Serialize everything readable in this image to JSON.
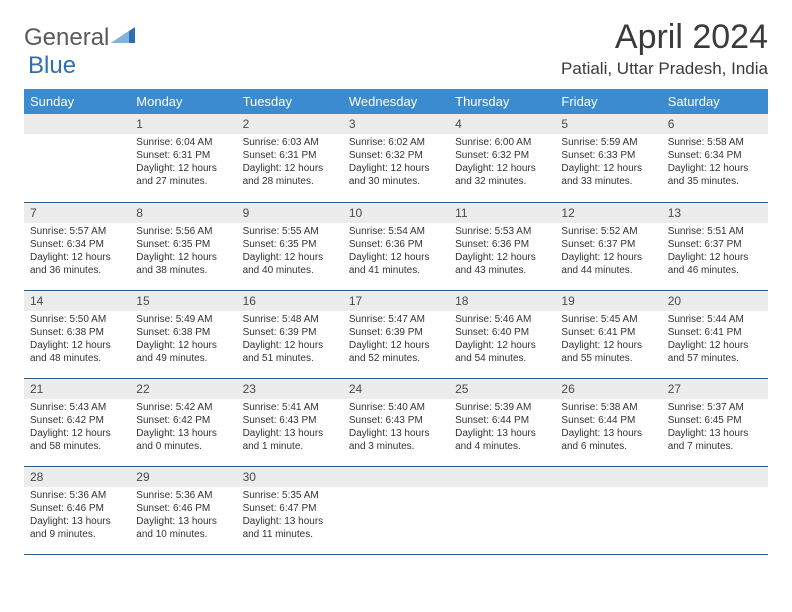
{
  "logo": {
    "text1": "General",
    "text2": "Blue"
  },
  "title": "April 2024",
  "location": "Patiali, Uttar Pradesh, India",
  "colors": {
    "header_bg": "#3b8bd0",
    "header_text": "#ffffff",
    "daynum_bg": "#ececec",
    "daynum_text": "#4a4a4a",
    "border": "#2e5f8f",
    "body_text": "#333333",
    "logo_text": "#5a5a5a",
    "logo_accent": "#2f6fb0"
  },
  "weekdays": [
    "Sunday",
    "Monday",
    "Tuesday",
    "Wednesday",
    "Thursday",
    "Friday",
    "Saturday"
  ],
  "weeks": [
    [
      null,
      {
        "n": "1",
        "sr": "Sunrise: 6:04 AM",
        "ss": "Sunset: 6:31 PM",
        "dl": "Daylight: 12 hours and 27 minutes."
      },
      {
        "n": "2",
        "sr": "Sunrise: 6:03 AM",
        "ss": "Sunset: 6:31 PM",
        "dl": "Daylight: 12 hours and 28 minutes."
      },
      {
        "n": "3",
        "sr": "Sunrise: 6:02 AM",
        "ss": "Sunset: 6:32 PM",
        "dl": "Daylight: 12 hours and 30 minutes."
      },
      {
        "n": "4",
        "sr": "Sunrise: 6:00 AM",
        "ss": "Sunset: 6:32 PM",
        "dl": "Daylight: 12 hours and 32 minutes."
      },
      {
        "n": "5",
        "sr": "Sunrise: 5:59 AM",
        "ss": "Sunset: 6:33 PM",
        "dl": "Daylight: 12 hours and 33 minutes."
      },
      {
        "n": "6",
        "sr": "Sunrise: 5:58 AM",
        "ss": "Sunset: 6:34 PM",
        "dl": "Daylight: 12 hours and 35 minutes."
      }
    ],
    [
      {
        "n": "7",
        "sr": "Sunrise: 5:57 AM",
        "ss": "Sunset: 6:34 PM",
        "dl": "Daylight: 12 hours and 36 minutes."
      },
      {
        "n": "8",
        "sr": "Sunrise: 5:56 AM",
        "ss": "Sunset: 6:35 PM",
        "dl": "Daylight: 12 hours and 38 minutes."
      },
      {
        "n": "9",
        "sr": "Sunrise: 5:55 AM",
        "ss": "Sunset: 6:35 PM",
        "dl": "Daylight: 12 hours and 40 minutes."
      },
      {
        "n": "10",
        "sr": "Sunrise: 5:54 AM",
        "ss": "Sunset: 6:36 PM",
        "dl": "Daylight: 12 hours and 41 minutes."
      },
      {
        "n": "11",
        "sr": "Sunrise: 5:53 AM",
        "ss": "Sunset: 6:36 PM",
        "dl": "Daylight: 12 hours and 43 minutes."
      },
      {
        "n": "12",
        "sr": "Sunrise: 5:52 AM",
        "ss": "Sunset: 6:37 PM",
        "dl": "Daylight: 12 hours and 44 minutes."
      },
      {
        "n": "13",
        "sr": "Sunrise: 5:51 AM",
        "ss": "Sunset: 6:37 PM",
        "dl": "Daylight: 12 hours and 46 minutes."
      }
    ],
    [
      {
        "n": "14",
        "sr": "Sunrise: 5:50 AM",
        "ss": "Sunset: 6:38 PM",
        "dl": "Daylight: 12 hours and 48 minutes."
      },
      {
        "n": "15",
        "sr": "Sunrise: 5:49 AM",
        "ss": "Sunset: 6:38 PM",
        "dl": "Daylight: 12 hours and 49 minutes."
      },
      {
        "n": "16",
        "sr": "Sunrise: 5:48 AM",
        "ss": "Sunset: 6:39 PM",
        "dl": "Daylight: 12 hours and 51 minutes."
      },
      {
        "n": "17",
        "sr": "Sunrise: 5:47 AM",
        "ss": "Sunset: 6:39 PM",
        "dl": "Daylight: 12 hours and 52 minutes."
      },
      {
        "n": "18",
        "sr": "Sunrise: 5:46 AM",
        "ss": "Sunset: 6:40 PM",
        "dl": "Daylight: 12 hours and 54 minutes."
      },
      {
        "n": "19",
        "sr": "Sunrise: 5:45 AM",
        "ss": "Sunset: 6:41 PM",
        "dl": "Daylight: 12 hours and 55 minutes."
      },
      {
        "n": "20",
        "sr": "Sunrise: 5:44 AM",
        "ss": "Sunset: 6:41 PM",
        "dl": "Daylight: 12 hours and 57 minutes."
      }
    ],
    [
      {
        "n": "21",
        "sr": "Sunrise: 5:43 AM",
        "ss": "Sunset: 6:42 PM",
        "dl": "Daylight: 12 hours and 58 minutes."
      },
      {
        "n": "22",
        "sr": "Sunrise: 5:42 AM",
        "ss": "Sunset: 6:42 PM",
        "dl": "Daylight: 13 hours and 0 minutes."
      },
      {
        "n": "23",
        "sr": "Sunrise: 5:41 AM",
        "ss": "Sunset: 6:43 PM",
        "dl": "Daylight: 13 hours and 1 minute."
      },
      {
        "n": "24",
        "sr": "Sunrise: 5:40 AM",
        "ss": "Sunset: 6:43 PM",
        "dl": "Daylight: 13 hours and 3 minutes."
      },
      {
        "n": "25",
        "sr": "Sunrise: 5:39 AM",
        "ss": "Sunset: 6:44 PM",
        "dl": "Daylight: 13 hours and 4 minutes."
      },
      {
        "n": "26",
        "sr": "Sunrise: 5:38 AM",
        "ss": "Sunset: 6:44 PM",
        "dl": "Daylight: 13 hours and 6 minutes."
      },
      {
        "n": "27",
        "sr": "Sunrise: 5:37 AM",
        "ss": "Sunset: 6:45 PM",
        "dl": "Daylight: 13 hours and 7 minutes."
      }
    ],
    [
      {
        "n": "28",
        "sr": "Sunrise: 5:36 AM",
        "ss": "Sunset: 6:46 PM",
        "dl": "Daylight: 13 hours and 9 minutes."
      },
      {
        "n": "29",
        "sr": "Sunrise: 5:36 AM",
        "ss": "Sunset: 6:46 PM",
        "dl": "Daylight: 13 hours and 10 minutes."
      },
      {
        "n": "30",
        "sr": "Sunrise: 5:35 AM",
        "ss": "Sunset: 6:47 PM",
        "dl": "Daylight: 13 hours and 11 minutes."
      },
      null,
      null,
      null,
      null
    ]
  ]
}
